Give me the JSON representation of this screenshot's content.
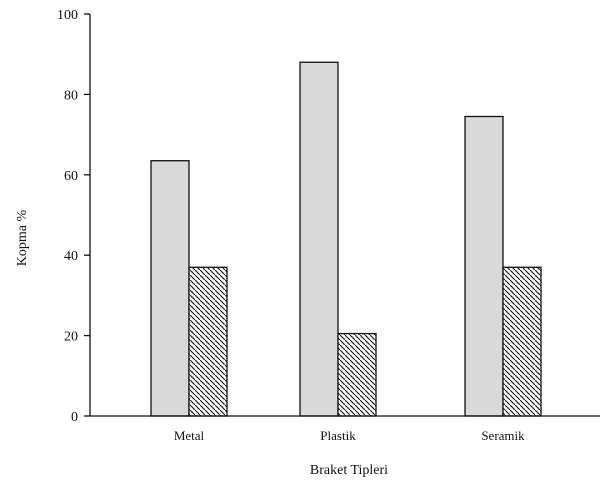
{
  "chart_data": {
    "type": "bar",
    "title": "",
    "xlabel": "Braket Tipleri",
    "ylabel": "Kopma %",
    "categories": [
      "Metal",
      "Plastik",
      "Seramik"
    ],
    "series": [
      {
        "values": [
          63.5,
          88,
          74.5
        ],
        "fill": "#d9d9d9",
        "pattern": "solid"
      },
      {
        "values": [
          37,
          20.5,
          37
        ],
        "fill": "#ffffff",
        "pattern": "diagonal-hatch"
      }
    ],
    "ylim": [
      0,
      100
    ],
    "yticks": [
      0,
      20,
      40,
      60,
      80,
      100
    ],
    "grid": false,
    "legend": "none"
  }
}
